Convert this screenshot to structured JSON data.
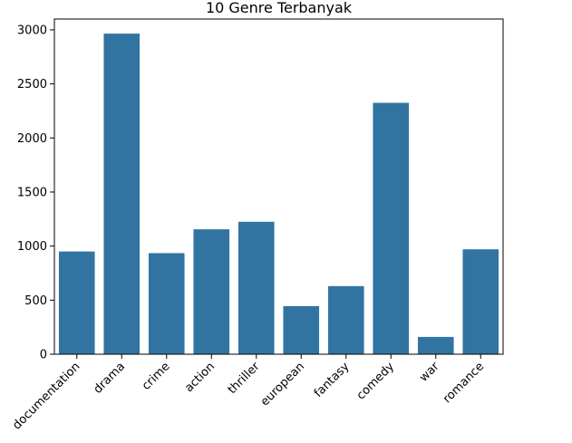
{
  "chart_data": {
    "type": "bar",
    "title": "10 Genre Terbanyak",
    "xlabel": "",
    "ylabel": "",
    "categories": [
      "documentation",
      "drama",
      "crime",
      "action",
      "thriller",
      "european",
      "fantasy",
      "comedy",
      "war",
      "romance"
    ],
    "values": [
      950,
      2965,
      935,
      1155,
      1225,
      445,
      630,
      2325,
      160,
      970
    ],
    "ylim": [
      0,
      3100
    ],
    "yticks": [
      0,
      500,
      1000,
      1500,
      2000,
      2500,
      3000
    ],
    "grid": false,
    "bar_color": "#3274a1",
    "x_tick_rotation": 45
  }
}
